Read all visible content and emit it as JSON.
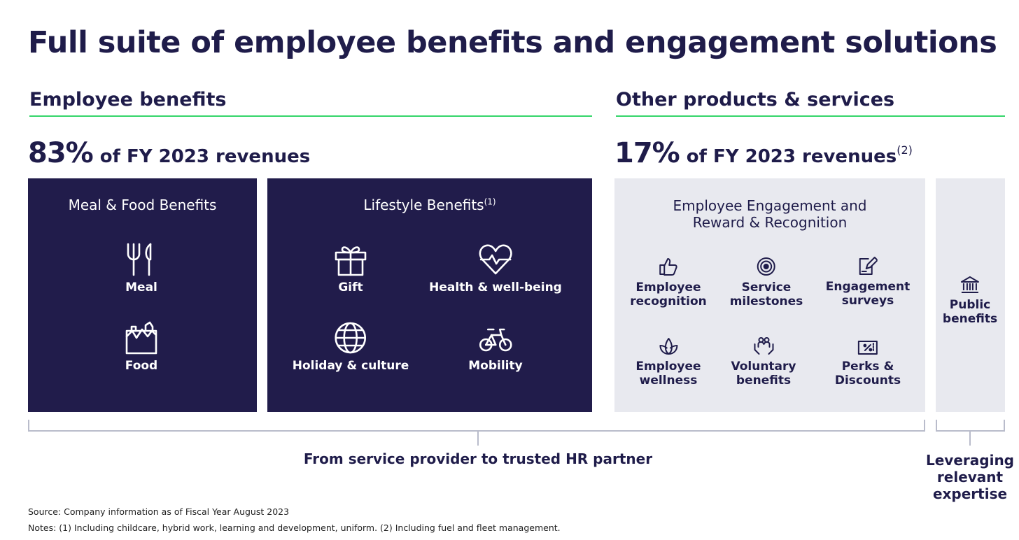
{
  "title": "Full suite of employee benefits and engagement solutions",
  "employee_benefits": {
    "heading": "Employee benefits",
    "pct": "83%",
    "pct_text": "of FY 2023 revenues",
    "meal_food": {
      "title": "Meal & Food Benefits",
      "items": [
        {
          "label": "Meal",
          "icon": "fork-knife-icon"
        },
        {
          "label": "Food",
          "icon": "grocery-bag-icon"
        }
      ]
    },
    "lifestyle": {
      "title": "Lifestyle Benefits",
      "title_note": "(1)",
      "items": [
        {
          "label": "Gift",
          "icon": "gift-icon"
        },
        {
          "label": "Health & well-being",
          "icon": "heart-pulse-icon"
        },
        {
          "label": "Holiday & culture",
          "icon": "globe-icon"
        },
        {
          "label": "Mobility",
          "icon": "bicycle-icon"
        }
      ]
    }
  },
  "other_products": {
    "heading": "Other products & services",
    "pct": "17%",
    "pct_text": "of FY 2023 revenues",
    "pct_note": "(2)",
    "engagement": {
      "title_line1": "Employee Engagement and",
      "title_line2": "Reward & Recognition",
      "items": [
        {
          "line1": "Employee",
          "line2": "recognition",
          "icon": "thumbs-up-icon"
        },
        {
          "line1": "Service",
          "line2": "milestones",
          "icon": "target-icon"
        },
        {
          "line1": "Engagement",
          "line2": "surveys",
          "icon": "survey-pencil-icon"
        },
        {
          "line1": "Employee",
          "line2": "wellness",
          "icon": "lotus-icon"
        },
        {
          "line1": "Voluntary",
          "line2": "benefits",
          "icon": "hands-people-icon"
        },
        {
          "line1": "Perks &",
          "line2": "Discounts",
          "icon": "ticket-icon"
        }
      ]
    },
    "public": {
      "line1": "Public",
      "line2": "benefits",
      "icon": "bank-building-icon"
    }
  },
  "bracket_main_label": "From service provider to trusted HR partner",
  "bracket_side_label": {
    "line1": "Leveraging",
    "line2": "relevant",
    "line3": "expertise"
  },
  "source": "Source: Company information as of Fiscal Year August 2023",
  "notes": "Notes: (1) Including childcare, hybrid work, learning and development, uniform. (2) Including fuel and fleet management.",
  "colors": {
    "navy": "#211c4b",
    "green_rule": "#35d66a",
    "light_panel": "#e8e9ef"
  }
}
